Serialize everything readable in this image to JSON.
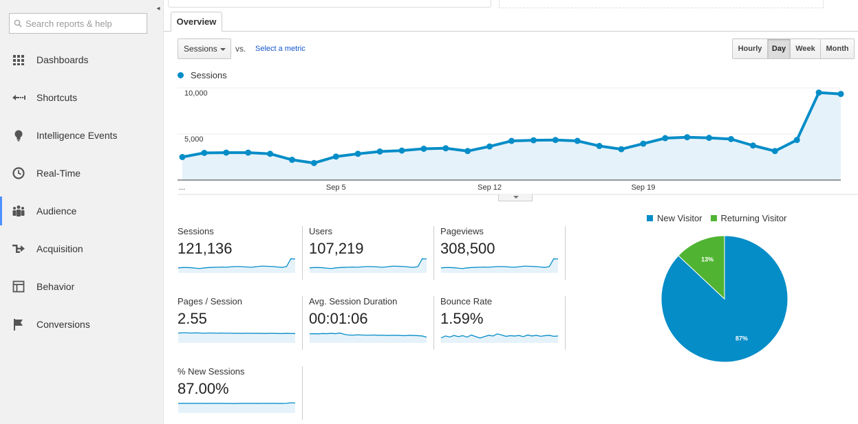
{
  "search": {
    "placeholder": "Search reports & help"
  },
  "sidebar": {
    "collapse_icon": "◂",
    "items": [
      {
        "label": "Dashboards",
        "icon": "grid-icon",
        "active": false
      },
      {
        "label": "Shortcuts",
        "icon": "shortcut-arrow-icon",
        "active": false
      },
      {
        "label": "Intelligence Events",
        "icon": "lightbulb-icon",
        "active": false
      },
      {
        "label": "Real-Time",
        "icon": "clock-icon",
        "active": false
      },
      {
        "label": "Audience",
        "icon": "people-icon",
        "active": true
      },
      {
        "label": "Acquisition",
        "icon": "branch-arrow-icon",
        "active": false
      },
      {
        "label": "Behavior",
        "icon": "layout-icon",
        "active": false
      },
      {
        "label": "Conversions",
        "icon": "flag-icon",
        "active": false
      }
    ]
  },
  "tabs": {
    "overview": "Overview"
  },
  "controls": {
    "metric": "Sessions",
    "vs": "vs.",
    "select_metric": "Select a metric",
    "time_buttons": [
      {
        "label": "Hourly",
        "selected": false
      },
      {
        "label": "Day",
        "selected": true
      },
      {
        "label": "Week",
        "selected": false
      },
      {
        "label": "Month",
        "selected": false
      }
    ]
  },
  "chart_data": [
    {
      "type": "area",
      "series": [
        {
          "name": "Sessions",
          "color": "#058dc7",
          "values": [
            2500,
            2950,
            2980,
            2980,
            2850,
            2200,
            1850,
            2550,
            2850,
            3100,
            3200,
            3400,
            3450,
            3150,
            3650,
            4250,
            4320,
            4350,
            4250,
            3700,
            3350,
            3950,
            4550,
            4650,
            4580,
            4450,
            3750,
            3150,
            4350,
            9500,
            9350
          ]
        }
      ],
      "x_tick_labels": [
        {
          "index": 0,
          "label": "..."
        },
        {
          "index": 7,
          "label": "Sep 5"
        },
        {
          "index": 14,
          "label": "Sep 12"
        },
        {
          "index": 21,
          "label": "Sep 19"
        }
      ],
      "y_ticks": [
        {
          "value": 5000,
          "label": "5,000"
        },
        {
          "value": 10000,
          "label": "10,000"
        }
      ],
      "ylim": [
        0,
        10000
      ],
      "grid": true
    },
    {
      "type": "pie",
      "slices": [
        {
          "name": "New Visitor",
          "value": 87,
          "label": "87%",
          "color": "#058dc7"
        },
        {
          "name": "Returning Visitor",
          "value": 13,
          "label": "13%",
          "color": "#50b432"
        }
      ],
      "legend": "top"
    }
  ],
  "scorecards": [
    {
      "label": "Sessions",
      "value": "121,136",
      "spark": [
        30,
        32,
        32,
        31,
        28,
        26,
        30,
        32,
        33,
        34,
        35,
        34,
        36,
        38,
        38,
        37,
        35,
        34,
        37,
        40,
        40,
        39,
        38,
        35,
        33,
        38,
        85,
        84
      ]
    },
    {
      "label": "Users",
      "value": "107,219",
      "spark": [
        30,
        32,
        32,
        31,
        28,
        26,
        30,
        32,
        33,
        34,
        35,
        34,
        36,
        38,
        38,
        37,
        35,
        34,
        37,
        40,
        40,
        39,
        38,
        35,
        33,
        38,
        85,
        84
      ]
    },
    {
      "label": "Pageviews",
      "value": "308,500",
      "spark": [
        30,
        32,
        32,
        31,
        28,
        26,
        30,
        32,
        33,
        34,
        35,
        34,
        36,
        38,
        38,
        37,
        35,
        34,
        37,
        40,
        40,
        39,
        38,
        35,
        33,
        38,
        85,
        84
      ]
    },
    {
      "label": "Pages / Session",
      "value": "2.55",
      "spark": [
        60,
        61,
        61,
        60,
        61,
        60,
        59,
        60,
        60,
        59,
        60,
        59,
        59,
        58,
        58,
        58,
        59,
        58,
        58,
        58,
        57,
        58,
        58,
        57,
        57,
        58,
        57,
        57
      ]
    },
    {
      "label": "Avg. Session Duration",
      "value": "00:01:06",
      "spark": [
        55,
        56,
        55,
        57,
        56,
        58,
        56,
        60,
        52,
        48,
        47,
        49,
        48,
        47,
        47,
        48,
        46,
        47,
        45,
        46,
        46,
        45,
        44,
        46,
        45,
        44,
        42,
        35
      ]
    },
    {
      "label": "Bounce Rate",
      "value": "1.59%",
      "spark": [
        30,
        42,
        36,
        45,
        38,
        44,
        35,
        48,
        38,
        30,
        38,
        46,
        42,
        55,
        48,
        40,
        44,
        42,
        45,
        38,
        48,
        42,
        46,
        40,
        44,
        46,
        40,
        42
      ]
    },
    {
      "label": "% New Sessions",
      "value": "87.00%",
      "spark": [
        58,
        59,
        58,
        59,
        58,
        59,
        58,
        58,
        59,
        58,
        59,
        58,
        58,
        57,
        58,
        59,
        58,
        59,
        58,
        58,
        59,
        58,
        59,
        58,
        58,
        59,
        62,
        61
      ]
    }
  ],
  "colors": {
    "accent": "#058dc7",
    "returning": "#50b432",
    "area_fill": "#e6f2fa",
    "active_nav": "#4d90fe"
  }
}
